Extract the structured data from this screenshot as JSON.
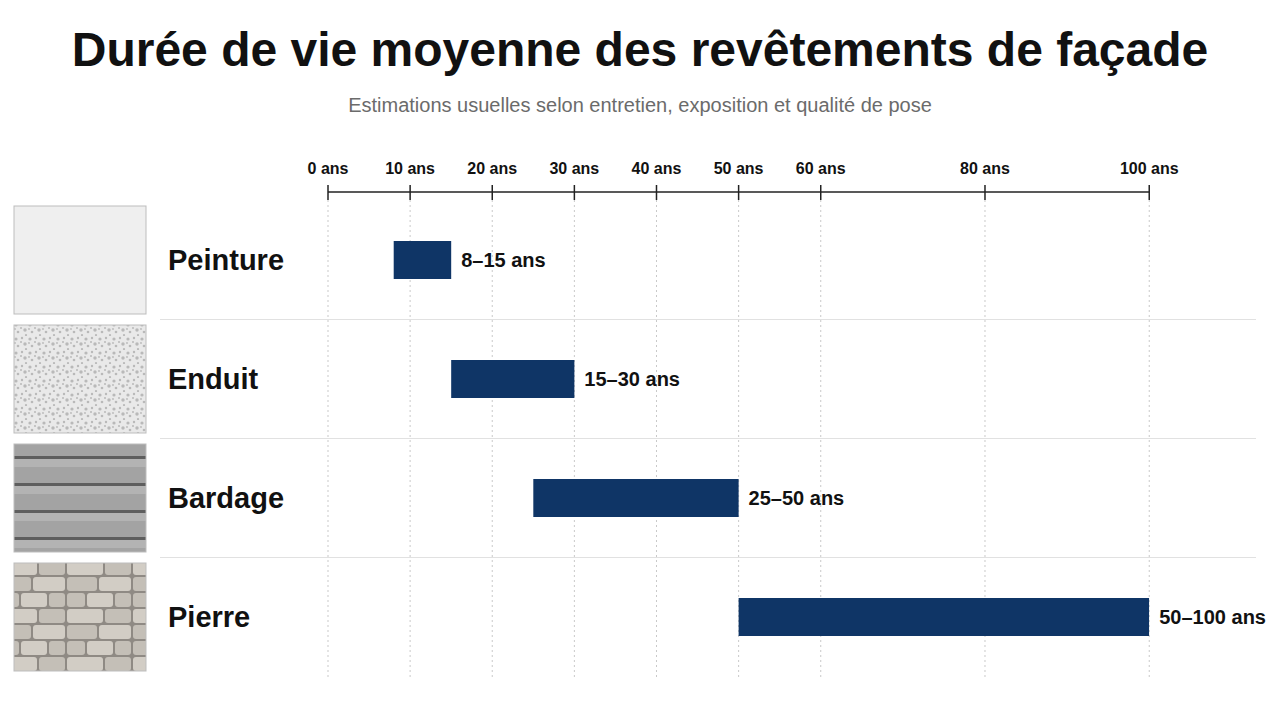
{
  "chart_data": {
    "type": "bar",
    "orientation": "horizontal",
    "title": "Durée de vie moyenne des revêtements de façade",
    "subtitle": "Estimations usuelles selon entretien, exposition et qualité de pose",
    "categories": [
      "Peinture",
      "Enduit",
      "Bardage",
      "Pierre"
    ],
    "values": [
      [
        8,
        15
      ],
      [
        15,
        30
      ],
      [
        25,
        50
      ],
      [
        50,
        100
      ]
    ],
    "value_labels": [
      "8–15 ans",
      "15–30 ans",
      "25–50 ans",
      "50–100 ans"
    ],
    "color": "#0f3566",
    "xlim": [
      0,
      100
    ],
    "xticks": [
      {
        "value": 0,
        "label": "0 ans"
      },
      {
        "value": 10,
        "label": "10 ans"
      },
      {
        "value": 20,
        "label": "20 ans"
      },
      {
        "value": 30,
        "label": "30 ans"
      },
      {
        "value": 40,
        "label": "40 ans"
      },
      {
        "value": 50,
        "label": "50 ans"
      },
      {
        "value": 60,
        "label": "60 ans"
      },
      {
        "value": 80,
        "label": "80 ans"
      },
      {
        "value": 100,
        "label": "100 ans"
      }
    ],
    "grid": true,
    "data_labels": true
  }
}
